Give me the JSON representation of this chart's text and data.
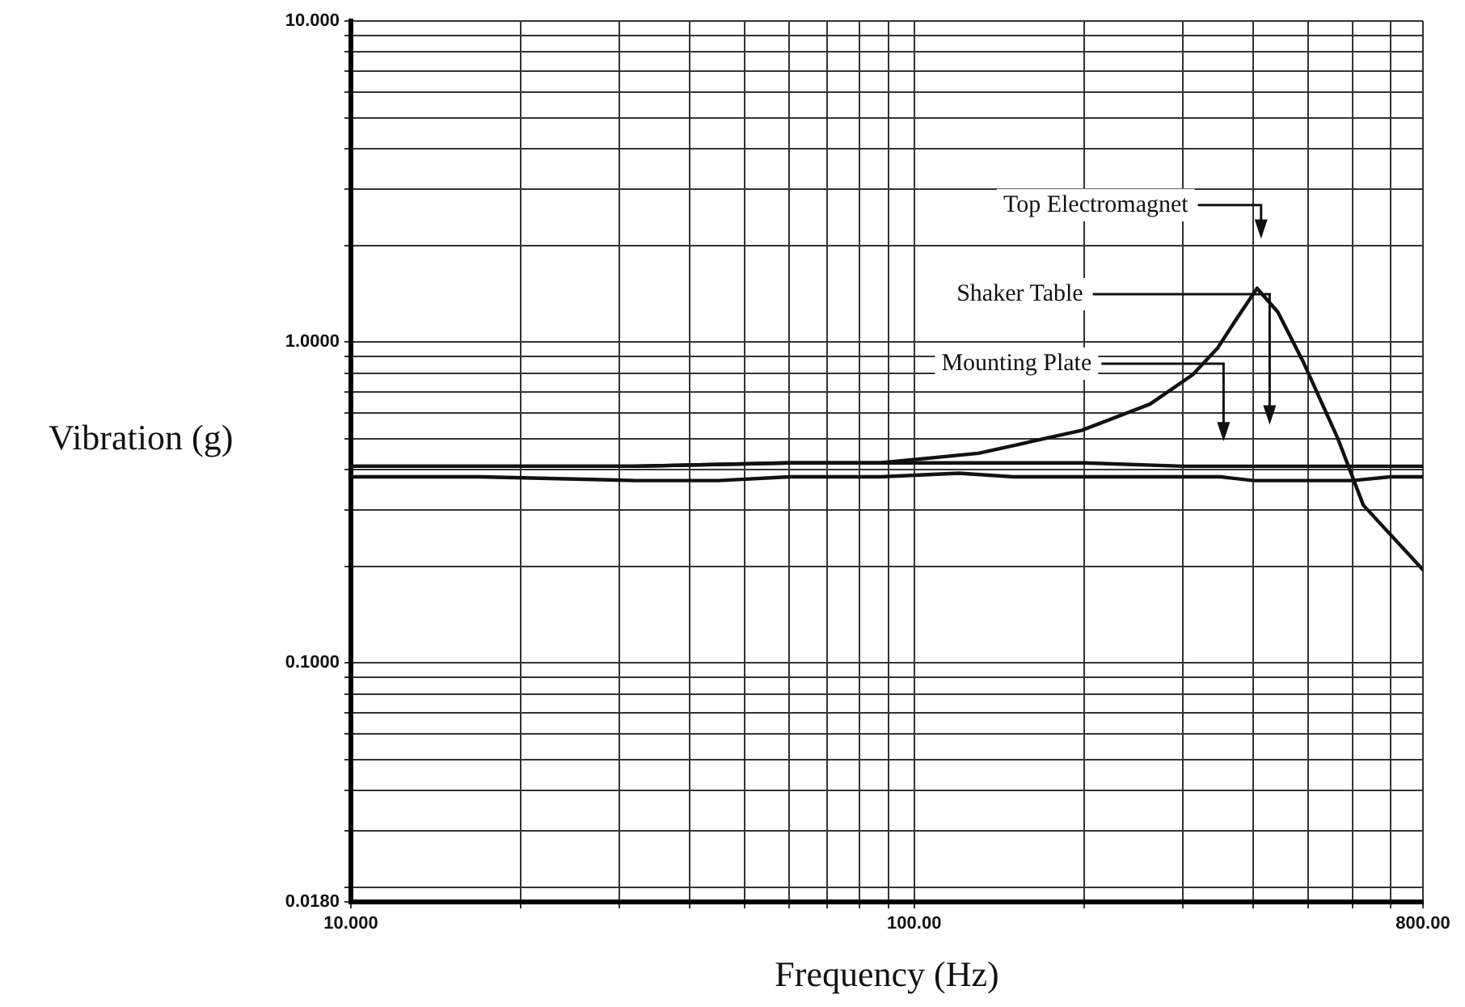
{
  "chart_data": {
    "type": "line",
    "xlabel": "Frequency (Hz)",
    "ylabel": "Vibration (g)",
    "log": "xy",
    "xlim": [
      10,
      800
    ],
    "ylim": [
      0.018,
      10
    ],
    "xticks": [
      {
        "value": 10,
        "label": "10.000"
      },
      {
        "value": 20,
        "label": null
      },
      {
        "value": 30,
        "label": null
      },
      {
        "value": 40,
        "label": null
      },
      {
        "value": 50,
        "label": null
      },
      {
        "value": 60,
        "label": null
      },
      {
        "value": 70,
        "label": null
      },
      {
        "value": 80,
        "label": null
      },
      {
        "value": 90,
        "label": null
      },
      {
        "value": 100,
        "label": "100.00"
      },
      {
        "value": 200,
        "label": null
      },
      {
        "value": 300,
        "label": null
      },
      {
        "value": 400,
        "label": null
      },
      {
        "value": 500,
        "label": null
      },
      {
        "value": 600,
        "label": null
      },
      {
        "value": 700,
        "label": null
      },
      {
        "value": 800,
        "label": "800.00"
      }
    ],
    "yticks": [
      {
        "value": 0.018,
        "label": "0.0180"
      },
      {
        "value": 0.02,
        "label": null
      },
      {
        "value": 0.03,
        "label": null
      },
      {
        "value": 0.04,
        "label": null
      },
      {
        "value": 0.05,
        "label": null
      },
      {
        "value": 0.06,
        "label": null
      },
      {
        "value": 0.07,
        "label": null
      },
      {
        "value": 0.08,
        "label": null
      },
      {
        "value": 0.09,
        "label": null
      },
      {
        "value": 0.1,
        "label": "0.1000"
      },
      {
        "value": 0.2,
        "label": null
      },
      {
        "value": 0.3,
        "label": null
      },
      {
        "value": 0.4,
        "label": null
      },
      {
        "value": 0.5,
        "label": null
      },
      {
        "value": 0.6,
        "label": null
      },
      {
        "value": 0.7,
        "label": null
      },
      {
        "value": 0.8,
        "label": null
      },
      {
        "value": 0.9,
        "label": null
      },
      {
        "value": 1,
        "label": "1.0000"
      },
      {
        "value": 2,
        "label": null
      },
      {
        "value": 3,
        "label": null
      },
      {
        "value": 4,
        "label": null
      },
      {
        "value": 5,
        "label": null
      },
      {
        "value": 6,
        "label": null
      },
      {
        "value": 7,
        "label": null
      },
      {
        "value": 8,
        "label": null
      },
      {
        "value": 9,
        "label": null
      },
      {
        "value": 10,
        "label": "10.000"
      }
    ],
    "grid": true,
    "legend": false,
    "marker": "none",
    "line_style": "solid",
    "series": [
      {
        "color": "#111111",
        "x": [
          10,
          17,
          32,
          60,
          87,
          130,
          198,
          262,
          312,
          346,
          371,
          406,
          442,
          490,
          565,
          627,
          800
        ],
        "values": [
          0.41,
          0.41,
          0.41,
          0.42,
          0.42,
          0.45,
          0.53,
          0.64,
          0.79,
          0.96,
          1.16,
          1.47,
          1.24,
          0.87,
          0.5,
          0.31,
          0.195
        ]
      },
      {
        "color": "#111111",
        "x": [
          10,
          17,
          32,
          60,
          87,
          130,
          200,
          300,
          400,
          500,
          600,
          800
        ],
        "values": [
          0.41,
          0.41,
          0.41,
          0.42,
          0.42,
          0.42,
          0.42,
          0.41,
          0.41,
          0.41,
          0.41,
          0.41
        ]
      },
      {
        "color": "#111111",
        "x": [
          10,
          17,
          32,
          45,
          60,
          87,
          120,
          150,
          200,
          300,
          350,
          400,
          500,
          600,
          700,
          800
        ],
        "values": [
          0.38,
          0.38,
          0.37,
          0.37,
          0.38,
          0.38,
          0.39,
          0.38,
          0.38,
          0.38,
          0.38,
          0.37,
          0.37,
          0.37,
          0.38,
          0.38
        ]
      }
    ],
    "annotations": [
      "Top Electromagnet",
      "Shaker Table",
      "Mounting Plate"
    ]
  }
}
